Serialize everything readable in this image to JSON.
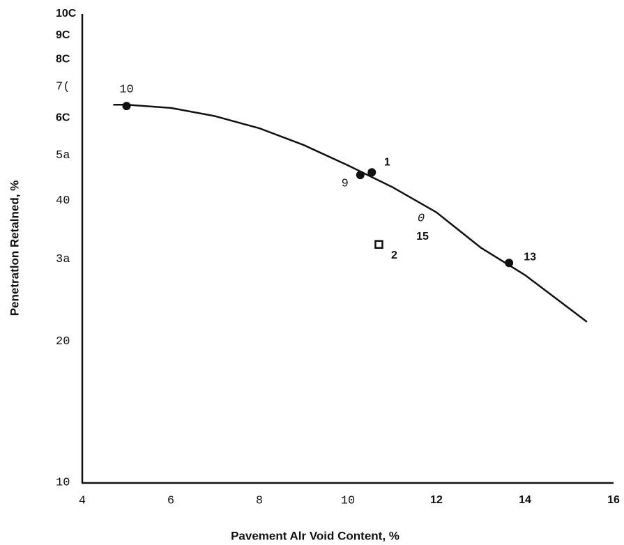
{
  "chart_data": {
    "type": "scatter",
    "xlabel": "Pavement Alr Void Content, %",
    "ylabel": "Penetratlon Retalned, %",
    "xlim": [
      4,
      16
    ],
    "xticks": [
      4,
      6,
      8,
      10,
      12,
      14,
      16
    ],
    "ylim": [
      10,
      100
    ],
    "yscale": "log",
    "yticks": [
      10,
      20,
      {
        "value": 30,
        "label": "3a"
      },
      40,
      {
        "value": 50,
        "label": "5a"
      },
      {
        "value": 60,
        "label": "6C"
      },
      {
        "value": 70,
        "label": "7("
      },
      {
        "value": 80,
        "label": "8C"
      },
      {
        "value": 90,
        "label": "9C"
      },
      {
        "value": 100,
        "label": "10C"
      }
    ],
    "grid": false,
    "series": [
      {
        "type": "scatter",
        "marker": "circle",
        "color": "#111111",
        "x": [
          5.0,
          10.28,
          10.54,
          13.64
        ],
        "values": [
          63.6,
          45.3,
          45.9,
          29.4
        ],
        "labels": [
          "10",
          "9",
          "1",
          "13"
        ]
      },
      {
        "type": "scatter",
        "marker": "square",
        "color": "#111111",
        "x": [
          10.7
        ],
        "values": [
          32.2
        ],
        "labels": [
          "2"
        ]
      },
      {
        "type": "line",
        "color": "#111111",
        "x": [
          4.7,
          5,
          6,
          7,
          8,
          9,
          10,
          11,
          12,
          13,
          14,
          15,
          15.4
        ],
        "values": [
          64,
          64,
          63,
          60.5,
          57,
          52.5,
          47.5,
          42.7,
          37.7,
          31.7,
          27.7,
          23.5,
          22
        ]
      }
    ],
    "annotations": [
      "0",
      "15"
    ]
  }
}
